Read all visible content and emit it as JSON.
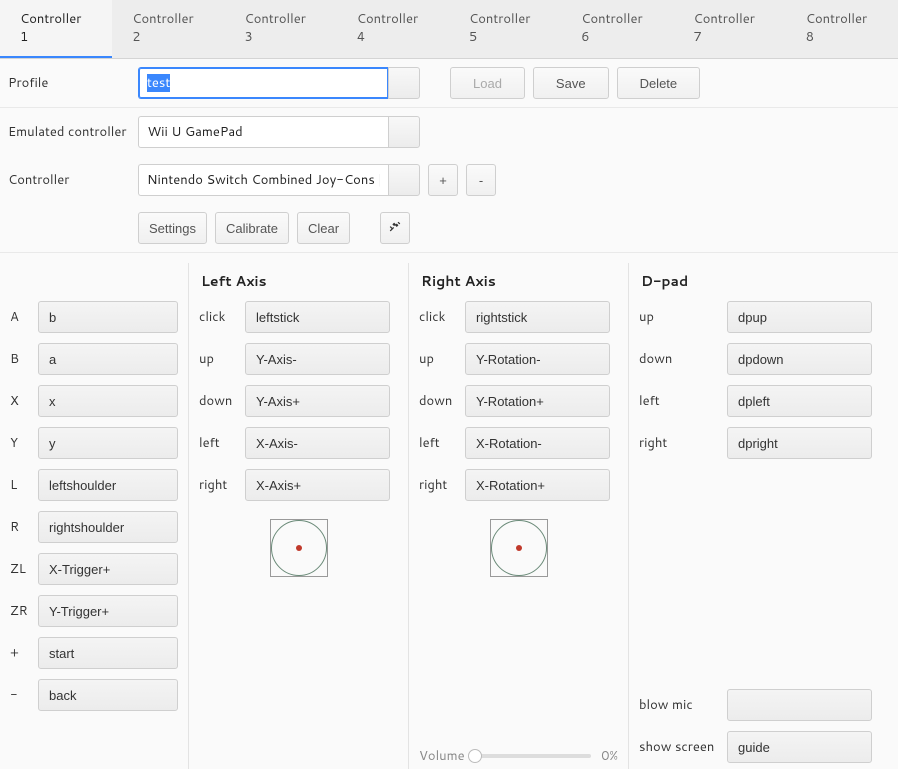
{
  "tabs": [
    "Controller 1",
    "Controller 2",
    "Controller 3",
    "Controller 4",
    "Controller 5",
    "Controller 6",
    "Controller 7",
    "Controller 8"
  ],
  "active_tab": 0,
  "labels": {
    "profile": "Profile",
    "emulated_controller": "Emulated controller",
    "controller": "Controller",
    "left_axis": "Left Axis",
    "right_axis": "Right Axis",
    "dpad": "D-pad",
    "volume": "Volume"
  },
  "profile": {
    "value": "test",
    "selection": "test"
  },
  "buttons": {
    "load": "Load",
    "save": "Save",
    "delete": "Delete",
    "settings": "Settings",
    "calibrate": "Calibrate",
    "clear": "Clear",
    "plus": "+",
    "minus": "-"
  },
  "emulated_controller": "Wii U GamePad",
  "controller_device": "Nintendo Switch Combined Joy-Cons [SD",
  "volume_percent": "0%",
  "face": [
    {
      "label": "A",
      "value": "b"
    },
    {
      "label": "B",
      "value": "a"
    },
    {
      "label": "X",
      "value": "x"
    },
    {
      "label": "Y",
      "value": "y"
    },
    {
      "label": "L",
      "value": "leftshoulder"
    },
    {
      "label": "R",
      "value": "rightshoulder"
    },
    {
      "label": "ZL",
      "value": "X-Trigger+"
    },
    {
      "label": "ZR",
      "value": "Y-Trigger+"
    },
    {
      "label": "+",
      "value": "start"
    },
    {
      "label": "-",
      "value": "back"
    }
  ],
  "left_axis": [
    {
      "label": "click",
      "value": "leftstick"
    },
    {
      "label": "up",
      "value": "Y-Axis-"
    },
    {
      "label": "down",
      "value": "Y-Axis+"
    },
    {
      "label": "left",
      "value": "X-Axis-"
    },
    {
      "label": "right",
      "value": "X-Axis+"
    }
  ],
  "right_axis": [
    {
      "label": "click",
      "value": "rightstick"
    },
    {
      "label": "up",
      "value": "Y-Rotation-"
    },
    {
      "label": "down",
      "value": "Y-Rotation+"
    },
    {
      "label": "left",
      "value": "X-Rotation-"
    },
    {
      "label": "right",
      "value": "X-Rotation+"
    }
  ],
  "dpad": [
    {
      "label": "up",
      "value": "dpup"
    },
    {
      "label": "down",
      "value": "dpdown"
    },
    {
      "label": "left",
      "value": "dpleft"
    },
    {
      "label": "right",
      "value": "dpright"
    }
  ],
  "dpad_extra": [
    {
      "label": "blow mic",
      "value": ""
    },
    {
      "label": "show screen",
      "value": "guide"
    }
  ],
  "colors": {
    "accent": "#3a87fd",
    "border": "#cfcfcf",
    "background": "#fafafa",
    "stick_circle": "#6a8a78",
    "stick_dot": "#c0392b"
  }
}
